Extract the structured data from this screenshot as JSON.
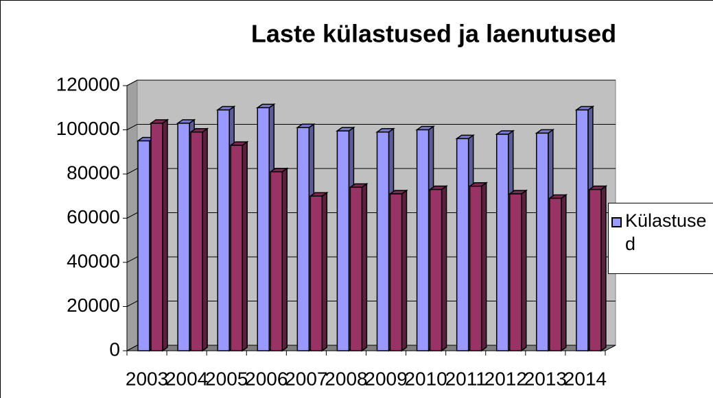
{
  "chart_data": {
    "type": "bar3d",
    "title": "Laste külastused ja laenutused",
    "categories": [
      "2003",
      "2004",
      "2005",
      "2006",
      "2007",
      "2008",
      "2009",
      "2010",
      "2011",
      "2012",
      "2013",
      "2014"
    ],
    "series": [
      {
        "name": "Külastused",
        "color": "#9999ff",
        "values": [
          95000,
          103000,
          109000,
          110000,
          101000,
          99500,
          99000,
          100000,
          96000,
          98000,
          98500,
          109000
        ]
      },
      {
        "color": "#993366",
        "values": [
          103000,
          99000,
          93000,
          81000,
          70000,
          74000,
          71000,
          73000,
          74500,
          71000,
          69000,
          73000
        ]
      }
    ],
    "ylim": [
      0,
      120000
    ],
    "yticks": [
      0,
      20000,
      40000,
      60000,
      80000,
      100000,
      120000
    ],
    "grid": true
  }
}
